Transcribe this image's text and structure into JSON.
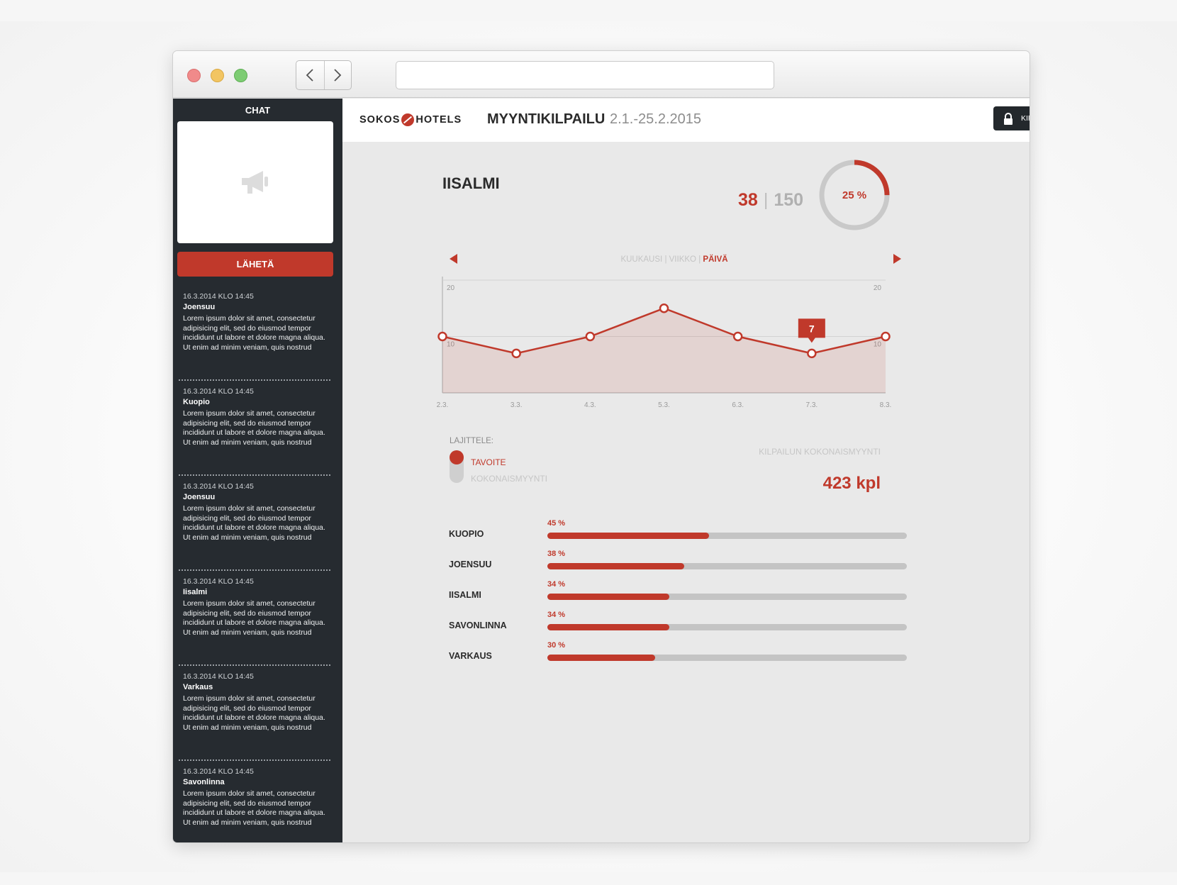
{
  "sidebar": {
    "title": "CHAT",
    "send_label": "LÄHETÄ",
    "messages": [
      {
        "timestamp": "16.3.2014 KLO 14:45",
        "author": "Joensuu",
        "text": "Lorem ipsum dolor sit amet, consectetur adipisicing elit, sed do eiusmod tempor incididunt ut labore et dolore magna aliqua. Ut enim ad minim veniam, quis nostrud"
      },
      {
        "timestamp": "16.3.2014 KLO 14:45",
        "author": "Kuopio",
        "text": "Lorem ipsum dolor sit amet, consectetur adipisicing elit, sed do eiusmod tempor incididunt ut labore et dolore magna aliqua. Ut enim ad minim veniam, quis nostrud"
      },
      {
        "timestamp": "16.3.2014 KLO 14:45",
        "author": "Joensuu",
        "text": "Lorem ipsum dolor sit amet, consectetur adipisicing elit, sed do eiusmod tempor incididunt ut labore et dolore magna aliqua. Ut enim ad minim veniam, quis nostrud"
      },
      {
        "timestamp": "16.3.2014 KLO 14:45",
        "author": "Iisalmi",
        "text": "Lorem ipsum dolor sit amet, consectetur adipisicing elit, sed do eiusmod tempor incididunt ut labore et dolore magna aliqua. Ut enim ad minim veniam, quis nostrud"
      },
      {
        "timestamp": "16.3.2014 KLO 14:45",
        "author": "Varkaus",
        "text": "Lorem ipsum dolor sit amet, consectetur adipisicing elit, sed do eiusmod tempor incididunt ut labore et dolore magna aliqua. Ut enim ad minim veniam, quis nostrud"
      },
      {
        "timestamp": "16.3.2014 KLO 14:45",
        "author": "Savonlinna",
        "text": "Lorem ipsum dolor sit amet, consectetur adipisicing elit, sed do eiusmod tempor incididunt ut labore et dolore magna aliqua. Ut enim ad minim veniam, quis nostrud"
      }
    ]
  },
  "header": {
    "logo_left": "SOKOS",
    "logo_right": "HOTELS",
    "title": "MYYNTIKILPAILU",
    "dates": "2.1.-25.2.2015",
    "logout_label": "KIRJAUDU ULOS"
  },
  "main": {
    "hotel": "IISALMI",
    "current": "38",
    "separator": "|",
    "target": "150",
    "progress_label": "25 %",
    "progress_fraction": 0.25,
    "period": {
      "month": "KUUKAUSI",
      "week": "VIIKKO",
      "day": "PÄIVÄ",
      "sep": "|"
    },
    "sort_label": "LAJITTELE:",
    "sort_options": [
      "TAVOITE",
      "KOKONAISMYYNTI"
    ],
    "total_label": "KILPAILUN KOKONAISMYYNTI",
    "total_value": "423 kpl",
    "ranking": [
      {
        "name": "KUOPIO",
        "label": "45 %",
        "value": 0.45
      },
      {
        "name": "JOENSUU",
        "label": "38 %",
        "value": 0.38
      },
      {
        "name": "IISALMI",
        "label": "34 %",
        "value": 0.34
      },
      {
        "name": "SAVONLINNA",
        "label": "34 %",
        "value": 0.34
      },
      {
        "name": "VARKAUS",
        "label": "30 %",
        "value": 0.3
      }
    ]
  },
  "colors": {
    "accent": "#c0392b",
    "sidebar": "#262b30",
    "background": "#e9e9e9"
  },
  "icons": [
    "chevron-left-icon",
    "chevron-right-icon",
    "megaphone-icon",
    "lock-icon",
    "arrow-left-icon",
    "arrow-right-icon"
  ],
  "chart_data": {
    "type": "area",
    "x": [
      "2.3.",
      "3.3.",
      "4.3.",
      "5.3.",
      "6.3.",
      "7.3.",
      "8.3."
    ],
    "values": [
      10,
      7,
      10,
      15,
      10,
      7,
      10
    ],
    "ylim": [
      0,
      20
    ],
    "y_ticks": [
      "10",
      "20"
    ],
    "highlight": {
      "index": 5,
      "label": "7"
    },
    "grid": true
  }
}
